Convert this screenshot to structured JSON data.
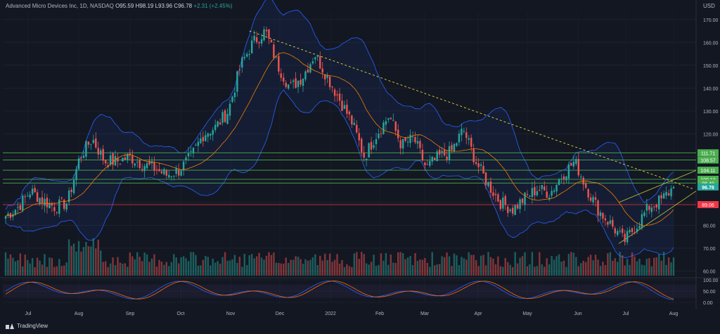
{
  "header": {
    "symbol": "Advanced Micro Devices Inc, 1D, NASDAQ",
    "open": "O95.59",
    "high": "H98.19",
    "low": "L93.96",
    "close": "C96.78",
    "change": "+2.31 (+2.45%)"
  },
  "currency": "USD",
  "brand": "TradingView",
  "colors": {
    "background": "#131722",
    "up": "#26a69a",
    "down": "#ef5350",
    "bollinger": "#2962ff",
    "sma": "#f57c00",
    "level_green": "#4caf50",
    "level_red": "#f23645",
    "trendline": "#ffeb3b",
    "wedge": "#c0ca33"
  },
  "chart_data": {
    "type": "candlestick",
    "ylim": [
      58,
      173
    ],
    "y_ticks": [
      "170.00",
      "160.00",
      "150.00",
      "140.00",
      "130.00",
      "120.00",
      "110.00",
      "100.00",
      "90.00",
      "80.00",
      "70.00",
      "60.00"
    ],
    "x_ticks": [
      "Jul",
      "Aug",
      "Sep",
      "Oct",
      "Nov",
      "Dec",
      "2022",
      "Feb",
      "Mar",
      "Apr",
      "May",
      "Jun",
      "Jul",
      "Aug"
    ],
    "horizontal_levels": [
      {
        "label": "111.71",
        "value": 111.71,
        "color": "green"
      },
      {
        "label": "108.57",
        "value": 108.57,
        "color": "green"
      },
      {
        "label": "104.11",
        "value": 104.11,
        "color": "green"
      },
      {
        "label": "100.13",
        "value": 100.13,
        "color": "green"
      },
      {
        "label": "98.49",
        "value": 98.49,
        "color": "green"
      },
      {
        "label": "89.06",
        "value": 89.06,
        "color": "red"
      }
    ],
    "last_price": {
      "label": "96.78",
      "value": 96.78
    },
    "close_path": [
      {
        "d": "Jul",
        "c": 84
      },
      {
        "d": "Jul",
        "c": 88
      },
      {
        "d": "Jul",
        "c": 95
      },
      {
        "d": "Jul",
        "c": 91
      },
      {
        "d": "Jul",
        "c": 88
      },
      {
        "d": "Jul",
        "c": 90
      },
      {
        "d": "Aug",
        "c": 110
      },
      {
        "d": "Aug",
        "c": 118
      },
      {
        "d": "Aug",
        "c": 108
      },
      {
        "d": "Aug",
        "c": 108
      },
      {
        "d": "Sep",
        "c": 110
      },
      {
        "d": "Sep",
        "c": 107
      },
      {
        "d": "Sep",
        "c": 105
      },
      {
        "d": "Sep",
        "c": 102
      },
      {
        "d": "Oct",
        "c": 104
      },
      {
        "d": "Oct",
        "c": 110
      },
      {
        "d": "Oct",
        "c": 120
      },
      {
        "d": "Oct",
        "c": 123
      },
      {
        "d": "Nov",
        "c": 130
      },
      {
        "d": "Nov",
        "c": 150
      },
      {
        "d": "Nov",
        "c": 160
      },
      {
        "d": "Nov",
        "c": 165
      },
      {
        "d": "Dec",
        "c": 150
      },
      {
        "d": "Dec",
        "c": 140
      },
      {
        "d": "Dec",
        "c": 145
      },
      {
        "d": "Dec",
        "c": 155
      },
      {
        "d": "2022",
        "c": 145
      },
      {
        "d": "2022",
        "c": 135
      },
      {
        "d": "2022",
        "c": 125
      },
      {
        "d": "2022",
        "c": 110
      },
      {
        "d": "Feb",
        "c": 120
      },
      {
        "d": "Feb",
        "c": 128
      },
      {
        "d": "Feb",
        "c": 115
      },
      {
        "d": "Feb",
        "c": 118
      },
      {
        "d": "Mar",
        "c": 105
      },
      {
        "d": "Mar",
        "c": 110
      },
      {
        "d": "Mar",
        "c": 112
      },
      {
        "d": "Mar",
        "c": 122
      },
      {
        "d": "Apr",
        "c": 108
      },
      {
        "d": "Apr",
        "c": 98
      },
      {
        "d": "Apr",
        "c": 90
      },
      {
        "d": "Apr",
        "c": 87
      },
      {
        "d": "May",
        "c": 92
      },
      {
        "d": "May",
        "c": 96
      },
      {
        "d": "May",
        "c": 94
      },
      {
        "d": "May",
        "c": 102
      },
      {
        "d": "Jun",
        "c": 108
      },
      {
        "d": "Jun",
        "c": 96
      },
      {
        "d": "Jun",
        "c": 86
      },
      {
        "d": "Jun",
        "c": 80
      },
      {
        "d": "Jul",
        "c": 73
      },
      {
        "d": "Jul",
        "c": 80
      },
      {
        "d": "Jul",
        "c": 88
      },
      {
        "d": "Jul",
        "c": 91
      },
      {
        "d": "Aug",
        "c": 96.78
      }
    ],
    "indicators": [
      "Bollinger Bands (20)",
      "SMA (20)",
      "Volume",
      "Stochastic RSI"
    ],
    "oscillator": {
      "y_ticks": [
        "100.00",
        "50.00",
        "0.00"
      ],
      "ylim": [
        0,
        100
      ]
    }
  }
}
